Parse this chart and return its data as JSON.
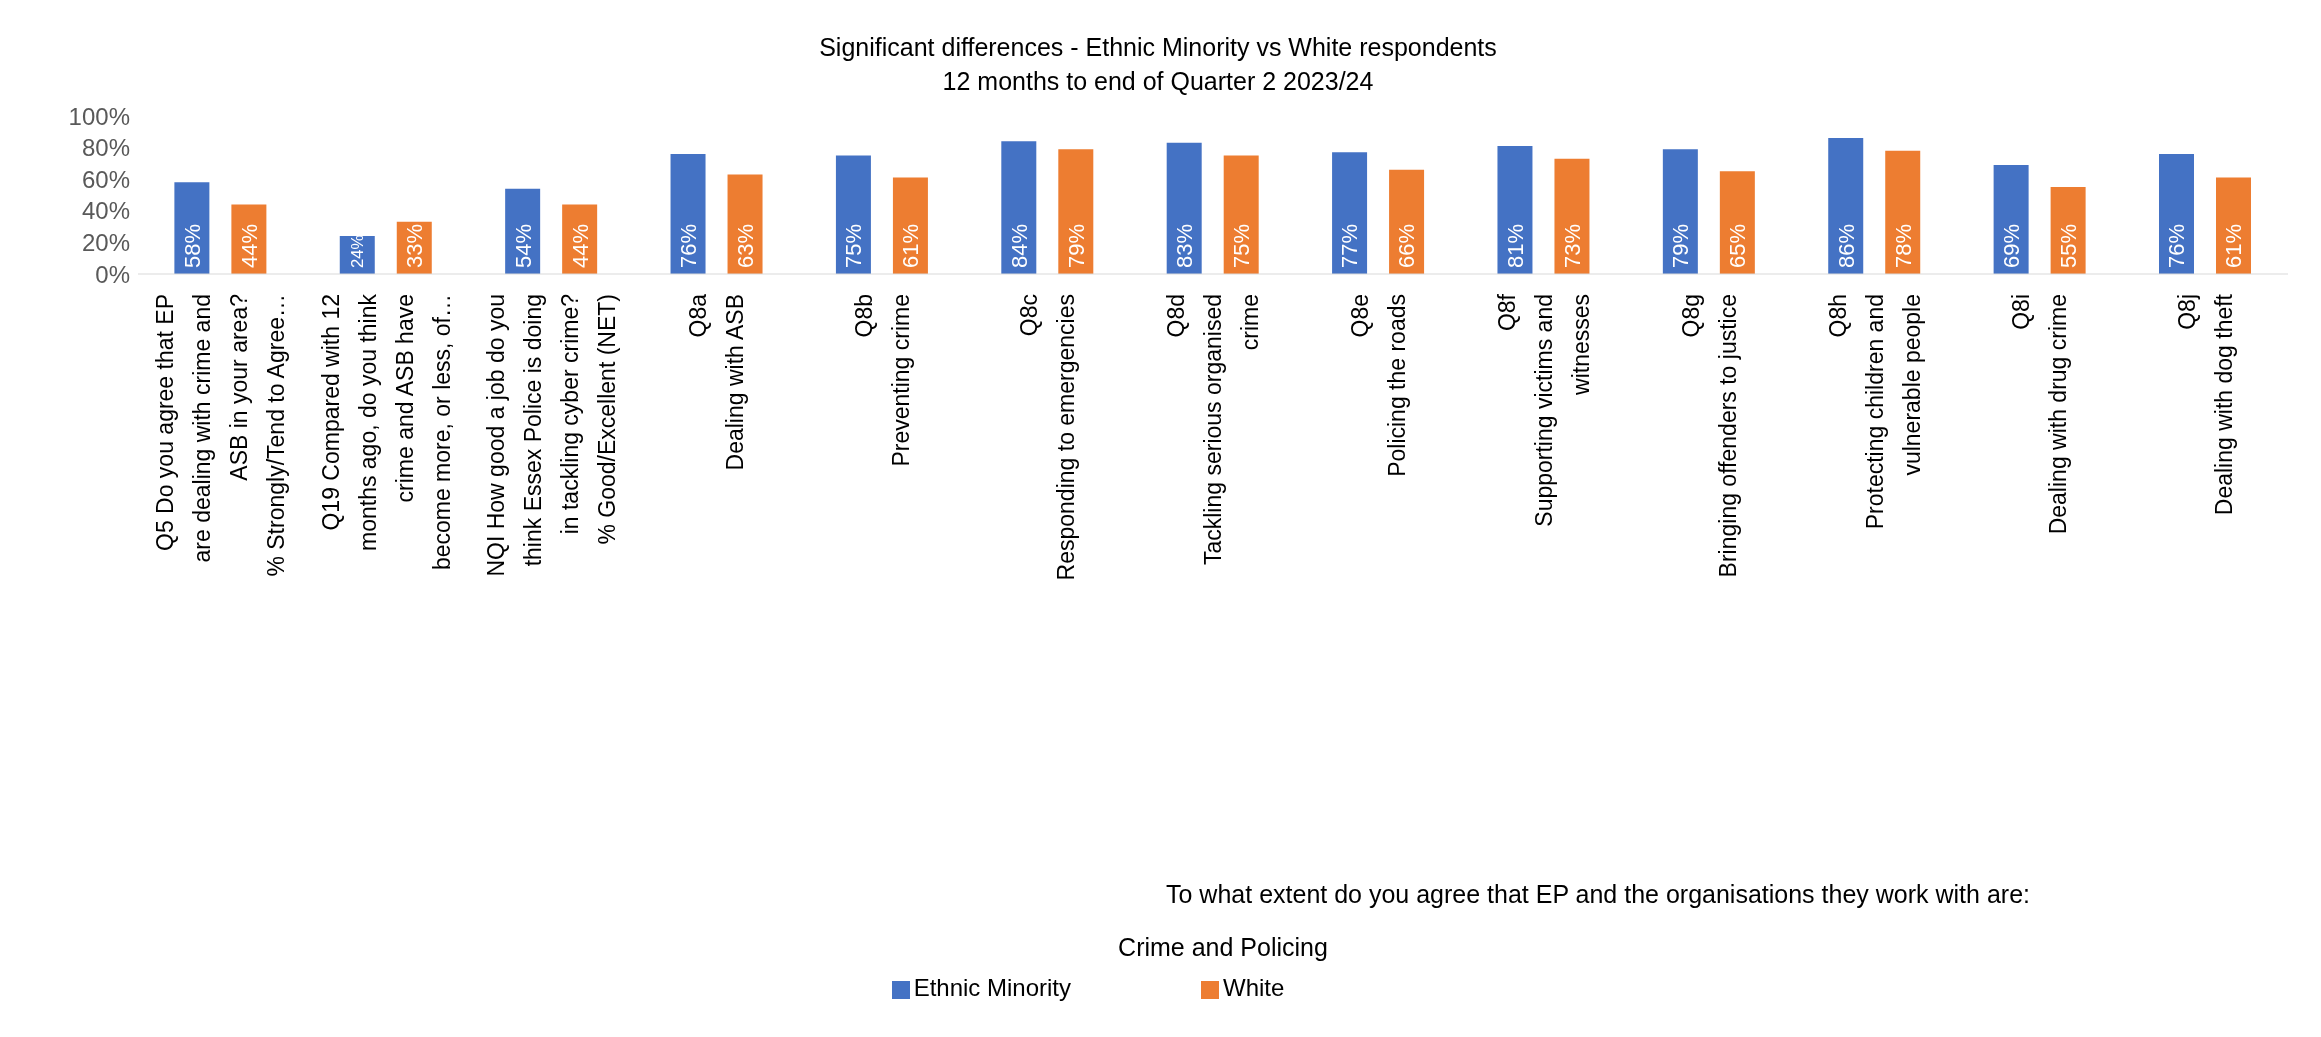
{
  "chart_data": {
    "type": "bar",
    "title": "Significant differences - Ethnic Minority vs White respondents\n12 months to end of Quarter 2 2023/24",
    "categories": [
      "Q5 Do you agree that EP\nare dealing with crime and\nASB in your area?\n% Strongly/Tend to Agree…",
      "Q19 Compared with 12\nmonths ago, do you think\ncrime and ASB have\nbecome more, or less, of…",
      "NQI How good a job do you\nthink Essex Police is doing\nin tackling cyber crime?\n% Good/Excellent (NET)",
      "Q8a\nDealing with ASB",
      "Q8b\nPreventing crime",
      "Q8c\nResponding to emergencies",
      "Q8d\nTackling serious organised\ncrime",
      "Q8e\nPolicing the roads",
      "Q8f\nSupporting victims and\nwitnesses",
      "Q8g\nBringing offenders to justice",
      "Q8h\nProtecting children and\nvulnerable people",
      "Q8i\nDealing with drug crime",
      "Q8j\nDealing with dog theft"
    ],
    "series": [
      {
        "name": "Ethnic Minority",
        "color": "#4472c4",
        "values": [
          58,
          24,
          54,
          76,
          75,
          84,
          83,
          77,
          81,
          79,
          86,
          69,
          76
        ],
        "value_labels": [
          "58%",
          "24%",
          "54%",
          "76%",
          "75%",
          "84%",
          "83%",
          "77%",
          "81%",
          "79%",
          "86%",
          "69%",
          "76%"
        ]
      },
      {
        "name": "White",
        "color": "#ed7d31",
        "values": [
          44,
          33,
          44,
          63,
          61,
          79,
          75,
          66,
          73,
          65,
          78,
          55,
          61
        ],
        "value_labels": [
          "44%",
          "33%",
          "44%",
          "63%",
          "61%",
          "79%",
          "75%",
          "66%",
          "73%",
          "65%",
          "78%",
          "55%",
          "61%"
        ]
      }
    ],
    "ylim": [
      0,
      100
    ],
    "yticks": [
      {
        "value": 0,
        "label": "0%"
      },
      {
        "value": 20,
        "label": "20%"
      },
      {
        "value": 40,
        "label": "40%"
      },
      {
        "value": 60,
        "label": "60%"
      },
      {
        "value": 80,
        "label": "80%"
      },
      {
        "value": 100,
        "label": "100%"
      }
    ],
    "annotations": [
      "To what extent do you agree that EP and the organisations they work with are:",
      "Crime and Policing"
    ],
    "grid": false,
    "legend": "bottom"
  }
}
